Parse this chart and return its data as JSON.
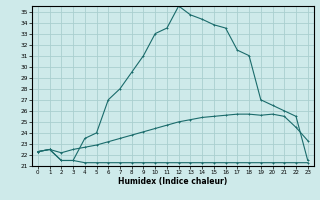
{
  "xlabel": "Humidex (Indice chaleur)",
  "bg_color": "#ceeaea",
  "grid_color": "#aacfcf",
  "line_color": "#1a6b6b",
  "xlim": [
    -0.5,
    23.5
  ],
  "ylim": [
    21,
    35.5
  ],
  "xticks": [
    0,
    1,
    2,
    3,
    4,
    5,
    6,
    7,
    8,
    9,
    10,
    11,
    12,
    13,
    14,
    15,
    16,
    17,
    18,
    19,
    20,
    21,
    22,
    23
  ],
  "yticks": [
    21,
    22,
    23,
    24,
    25,
    26,
    27,
    28,
    29,
    30,
    31,
    32,
    33,
    34,
    35
  ],
  "line1_x": [
    0,
    1,
    2,
    3,
    4,
    5,
    6,
    7,
    8,
    9,
    10,
    11,
    12,
    13,
    14,
    15,
    16,
    17,
    18,
    19,
    20,
    21,
    22,
    23
  ],
  "line1_y": [
    22.3,
    22.5,
    21.5,
    21.5,
    21.3,
    21.3,
    21.3,
    21.3,
    21.3,
    21.3,
    21.3,
    21.3,
    21.3,
    21.3,
    21.3,
    21.3,
    21.3,
    21.3,
    21.3,
    21.3,
    21.3,
    21.3,
    21.3,
    21.3
  ],
  "line2_x": [
    0,
    1,
    2,
    3,
    4,
    5,
    6,
    7,
    8,
    9,
    10,
    11,
    12,
    13,
    14,
    15,
    16,
    17,
    18,
    19,
    20,
    21,
    22,
    23
  ],
  "line2_y": [
    22.3,
    22.5,
    22.2,
    22.5,
    22.7,
    22.9,
    23.2,
    23.5,
    23.8,
    24.1,
    24.4,
    24.7,
    25.0,
    25.2,
    25.4,
    25.5,
    25.6,
    25.7,
    25.7,
    25.6,
    25.7,
    25.5,
    24.5,
    23.3
  ],
  "line3_x": [
    0,
    1,
    2,
    3,
    4,
    5,
    6,
    7,
    8,
    9,
    10,
    11,
    12,
    13,
    14,
    15,
    16,
    17,
    18,
    19,
    20,
    21,
    22,
    23
  ],
  "line3_y": [
    22.3,
    22.5,
    21.5,
    21.5,
    23.5,
    24.0,
    27.0,
    28.0,
    29.5,
    31.0,
    33.0,
    33.5,
    35.5,
    34.7,
    34.3,
    33.8,
    33.5,
    31.5,
    31.0,
    27.0,
    26.5,
    26.0,
    25.5,
    21.5
  ]
}
